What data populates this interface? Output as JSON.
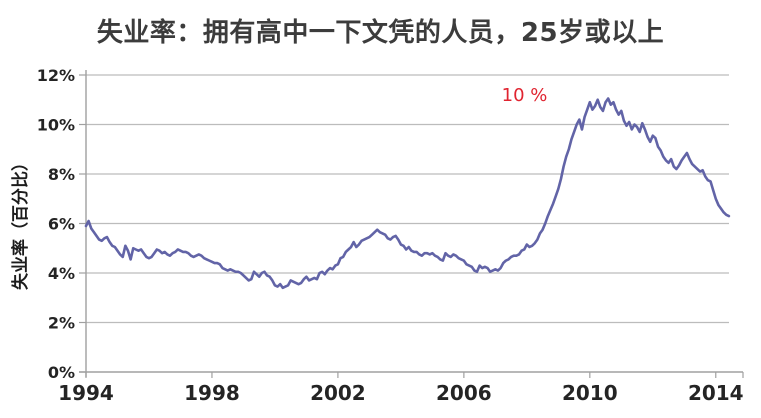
{
  "colors": {
    "line": "#6264a7",
    "annotation": "#e02430",
    "grid": "#bcbcbc",
    "axis": "#a0a0a0",
    "title_text": "#3c3c3c",
    "tick_text": "#242424",
    "background": "#ffffff"
  },
  "chart_data": {
    "type": "line",
    "title": "失业率：拥有高中一下文凭的人员，25岁或以上",
    "xlabel": "",
    "ylabel": "失业率（百分比）",
    "xlim": [
      1994,
      2014.42
    ],
    "ylim": [
      0,
      12
    ],
    "grid": "horizontal",
    "legend": "none",
    "x_ticks": [
      {
        "label": "1994",
        "value": 1994
      },
      {
        "label": "1998",
        "value": 1998
      },
      {
        "label": "2002",
        "value": 2002
      },
      {
        "label": "2006",
        "value": 2006
      },
      {
        "label": "2010",
        "value": 2010
      },
      {
        "label": "2014",
        "value": 2014
      }
    ],
    "y_ticks": [
      {
        "label": "12%",
        "value": 12
      },
      {
        "label": "10%",
        "value": 10
      },
      {
        "label": "8%",
        "value": 8
      },
      {
        "label": "6%",
        "value": 6
      },
      {
        "label": "4%",
        "value": 4
      },
      {
        "label": "2%",
        "value": 2
      },
      {
        "label": "0%",
        "value": 0
      }
    ],
    "annotation": {
      "text": "10 %",
      "x": 2007.2,
      "y": 11.15
    },
    "series": [
      {
        "name": "失业率（百分比）",
        "frequency": "monthly",
        "start_year": 1994,
        "values": [
          5.9,
          6.1,
          5.8,
          5.65,
          5.5,
          5.35,
          5.3,
          5.4,
          5.45,
          5.25,
          5.1,
          5.05,
          4.9,
          4.75,
          4.65,
          5.1,
          4.9,
          4.55,
          5.0,
          4.95,
          4.9,
          4.95,
          4.8,
          4.65,
          4.6,
          4.65,
          4.8,
          4.95,
          4.9,
          4.8,
          4.85,
          4.75,
          4.7,
          4.8,
          4.85,
          4.95,
          4.9,
          4.85,
          4.85,
          4.8,
          4.7,
          4.65,
          4.7,
          4.75,
          4.7,
          4.6,
          4.55,
          4.5,
          4.45,
          4.4,
          4.4,
          4.35,
          4.2,
          4.15,
          4.1,
          4.15,
          4.1,
          4.05,
          4.05,
          4.0,
          3.9,
          3.8,
          3.7,
          3.75,
          4.05,
          3.95,
          3.85,
          4.0,
          4.05,
          3.9,
          3.85,
          3.7,
          3.5,
          3.45,
          3.55,
          3.4,
          3.45,
          3.5,
          3.7,
          3.65,
          3.6,
          3.55,
          3.6,
          3.75,
          3.85,
          3.7,
          3.75,
          3.8,
          3.75,
          4.0,
          4.05,
          3.95,
          4.1,
          4.2,
          4.15,
          4.3,
          4.35,
          4.6,
          4.65,
          4.85,
          4.95,
          5.05,
          5.25,
          5.05,
          5.15,
          5.3,
          5.35,
          5.4,
          5.45,
          5.55,
          5.65,
          5.75,
          5.65,
          5.6,
          5.55,
          5.4,
          5.35,
          5.45,
          5.5,
          5.35,
          5.15,
          5.1,
          4.95,
          5.05,
          4.9,
          4.85,
          4.85,
          4.75,
          4.7,
          4.8,
          4.8,
          4.75,
          4.8,
          4.7,
          4.65,
          4.55,
          4.5,
          4.8,
          4.7,
          4.65,
          4.75,
          4.7,
          4.6,
          4.55,
          4.5,
          4.35,
          4.3,
          4.25,
          4.1,
          4.05,
          4.3,
          4.2,
          4.25,
          4.2,
          4.05,
          4.1,
          4.15,
          4.1,
          4.2,
          4.4,
          4.5,
          4.55,
          4.65,
          4.7,
          4.7,
          4.75,
          4.9,
          4.95,
          5.15,
          5.05,
          5.1,
          5.2,
          5.35,
          5.6,
          5.75,
          6.0,
          6.3,
          6.55,
          6.8,
          7.1,
          7.4,
          7.8,
          8.3,
          8.7,
          9.0,
          9.4,
          9.7,
          10.0,
          10.2,
          9.8,
          10.3,
          10.6,
          10.9,
          10.6,
          10.75,
          11.0,
          10.7,
          10.55,
          10.9,
          11.05,
          10.8,
          10.9,
          10.6,
          10.4,
          10.55,
          10.15,
          9.95,
          10.1,
          9.8,
          10.0,
          9.9,
          9.7,
          10.05,
          9.8,
          9.5,
          9.3,
          9.55,
          9.45,
          9.1,
          8.95,
          8.7,
          8.55,
          8.45,
          8.6,
          8.3,
          8.2,
          8.35,
          8.55,
          8.7,
          8.85,
          8.6,
          8.4,
          8.3,
          8.2,
          8.1,
          8.15,
          7.9,
          7.75,
          7.7,
          7.35,
          7.0,
          6.75,
          6.6,
          6.45,
          6.35,
          6.3
        ]
      }
    ]
  }
}
